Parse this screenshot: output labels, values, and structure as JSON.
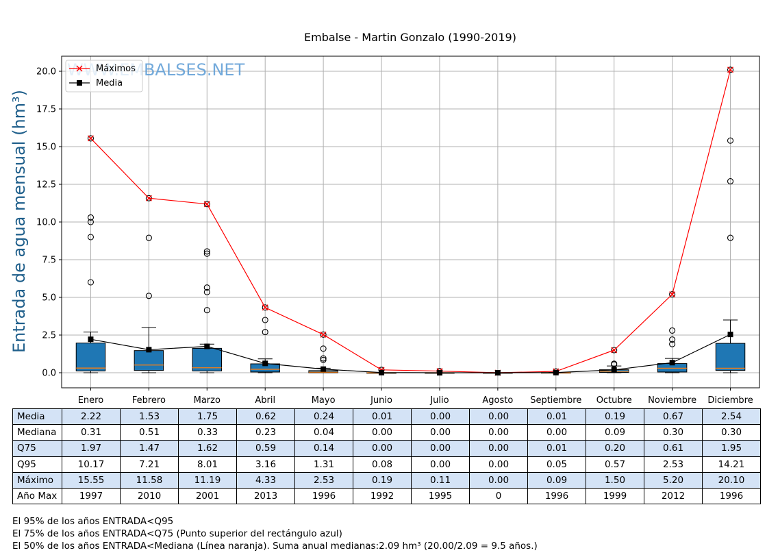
{
  "chart_data": {
    "type": "box",
    "title": "Embalse - Martin Gonzalo (1990-2019)",
    "ylabel": "Entrada de agua mensual (hm³)",
    "ylim": [
      -1.0,
      21.0
    ],
    "yticks": [
      0.0,
      2.5,
      5.0,
      7.5,
      10.0,
      12.5,
      15.0,
      17.5,
      20.0
    ],
    "grid": true,
    "legend_position": "top-left",
    "watermark": "WWW.EMBALSES.NET",
    "categories": [
      "Enero",
      "Febrero",
      "Marzo",
      "Abril",
      "Mayo",
      "Junio",
      "Julio",
      "Agosto",
      "Septiembre",
      "Octubre",
      "Noviembre",
      "Diciembre"
    ],
    "boxes": [
      {
        "q1": 0.12,
        "median": 0.31,
        "q3": 1.97,
        "whisker_low": 0.0,
        "whisker_high": 2.7,
        "outliers": [
          6.0,
          9.0,
          10.0,
          10.3,
          15.55
        ]
      },
      {
        "q1": 0.15,
        "median": 0.51,
        "q3": 1.47,
        "whisker_low": 0.0,
        "whisker_high": 3.0,
        "outliers": [
          5.1,
          8.95,
          11.58
        ]
      },
      {
        "q1": 0.12,
        "median": 0.33,
        "q3": 1.62,
        "whisker_low": 0.0,
        "whisker_high": 1.9,
        "outliers": [
          4.15,
          5.35,
          5.65,
          7.9,
          8.05,
          11.19
        ]
      },
      {
        "q1": 0.05,
        "median": 0.23,
        "q3": 0.59,
        "whisker_low": 0.0,
        "whisker_high": 0.92,
        "outliers": [
          2.7,
          3.5,
          4.33
        ]
      },
      {
        "q1": 0.0,
        "median": 0.04,
        "q3": 0.14,
        "whisker_low": 0.0,
        "whisker_high": 0.3,
        "outliers": [
          0.85,
          0.95,
          1.6,
          2.53
        ]
      },
      {
        "q1": 0.0,
        "median": 0.0,
        "q3": 0.0,
        "whisker_low": 0.0,
        "whisker_high": 0.0,
        "outliers": [
          0.19
        ]
      },
      {
        "q1": 0.0,
        "median": 0.0,
        "q3": 0.0,
        "whisker_low": 0.0,
        "whisker_high": 0.0,
        "outliers": [
          0.11
        ]
      },
      {
        "q1": 0.0,
        "median": 0.0,
        "q3": 0.0,
        "whisker_low": 0.0,
        "whisker_high": 0.0,
        "outliers": []
      },
      {
        "q1": 0.0,
        "median": 0.0,
        "q3": 0.01,
        "whisker_low": 0.0,
        "whisker_high": 0.02,
        "outliers": [
          0.09
        ]
      },
      {
        "q1": 0.02,
        "median": 0.09,
        "q3": 0.2,
        "whisker_low": 0.0,
        "whisker_high": 0.45,
        "outliers": [
          0.55,
          0.6,
          1.5
        ]
      },
      {
        "q1": 0.05,
        "median": 0.3,
        "q3": 0.61,
        "whisker_low": 0.0,
        "whisker_high": 0.95,
        "outliers": [
          1.9,
          2.2,
          2.8,
          5.2
        ]
      },
      {
        "q1": 0.15,
        "median": 0.3,
        "q3": 1.95,
        "whisker_low": 0.0,
        "whisker_high": 3.5,
        "outliers": [
          8.95,
          12.7,
          15.4,
          20.1
        ]
      }
    ],
    "series": [
      {
        "name": "Máximos",
        "color": "#ff0000",
        "marker": "x",
        "values": [
          15.55,
          11.58,
          11.19,
          4.33,
          2.53,
          0.19,
          0.11,
          0.0,
          0.09,
          1.5,
          5.2,
          20.1
        ]
      },
      {
        "name": "Media",
        "color": "#000000",
        "marker": "square",
        "values": [
          2.22,
          1.53,
          1.75,
          0.62,
          0.24,
          0.01,
          0.0,
          0.0,
          0.01,
          0.19,
          0.67,
          2.54
        ]
      }
    ],
    "colors": {
      "box_fill": "#1f77b4",
      "median_line": "#ff7f0e",
      "grid": "#b0b0b0",
      "table_shade": "#d4e3f6",
      "ylabel": "#1f5f8b",
      "watermark": "#5b9bd5"
    }
  },
  "table": {
    "rows": [
      {
        "label": "Media",
        "shaded": true,
        "values": [
          "2.22",
          "1.53",
          "1.75",
          "0.62",
          "0.24",
          "0.01",
          "0.00",
          "0.00",
          "0.01",
          "0.19",
          "0.67",
          "2.54"
        ]
      },
      {
        "label": "Mediana",
        "shaded": false,
        "values": [
          "0.31",
          "0.51",
          "0.33",
          "0.23",
          "0.04",
          "0.00",
          "0.00",
          "0.00",
          "0.00",
          "0.09",
          "0.30",
          "0.30"
        ]
      },
      {
        "label": "Q75",
        "shaded": true,
        "values": [
          "1.97",
          "1.47",
          "1.62",
          "0.59",
          "0.14",
          "0.00",
          "0.00",
          "0.00",
          "0.01",
          "0.20",
          "0.61",
          "1.95"
        ]
      },
      {
        "label": "Q95",
        "shaded": false,
        "values": [
          "10.17",
          "7.21",
          "8.01",
          "3.16",
          "1.31",
          "0.08",
          "0.00",
          "0.00",
          "0.05",
          "0.57",
          "2.53",
          "14.21"
        ]
      },
      {
        "label": "Máximo",
        "shaded": true,
        "values": [
          "15.55",
          "11.58",
          "11.19",
          "4.33",
          "2.53",
          "0.19",
          "0.11",
          "0.00",
          "0.09",
          "1.50",
          "5.20",
          "20.10"
        ]
      },
      {
        "label": "Año Max",
        "shaded": false,
        "values": [
          "1997",
          "2010",
          "2001",
          "2013",
          "1996",
          "1992",
          "1995",
          "0",
          "1996",
          "1999",
          "2012",
          "1996"
        ]
      }
    ]
  },
  "notes": {
    "line1": "El 95% de los años ENTRADA<Q95",
    "line2": "El 75% de los años ENTRADA<Q75 (Punto superior del rectángulo azul)",
    "line3": "El 50% de los años ENTRADA<Mediana (Línea naranja). Suma anual medianas:2.09 hm³ (20.00/2.09 = 9.5 años.)"
  }
}
